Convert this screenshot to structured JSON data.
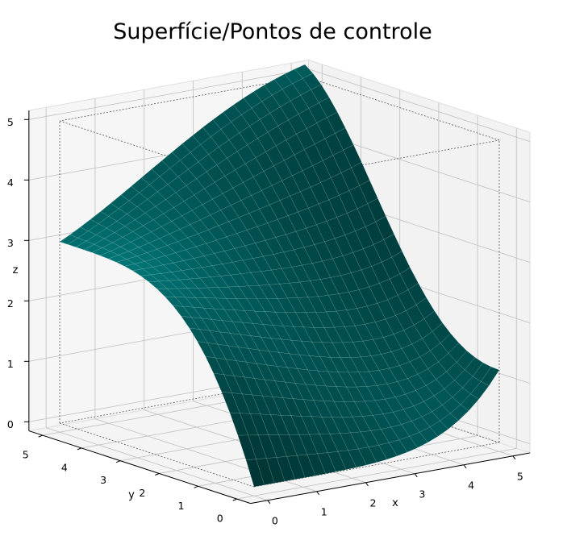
{
  "chart_data": {
    "type": "surface",
    "title": "Superfície/Pontos de controle",
    "xlabel": "x",
    "ylabel": "y",
    "zlabel": "z",
    "xlim": [
      0,
      5
    ],
    "ylim": [
      0,
      5
    ],
    "zlim": [
      0,
      5
    ],
    "x_ticks": [
      "0",
      "1",
      "2",
      "3",
      "4",
      "5"
    ],
    "y_ticks": [
      "0",
      "1",
      "2",
      "3",
      "4",
      "5"
    ],
    "z_ticks": [
      "0",
      "1",
      "2",
      "3",
      "4",
      "5"
    ],
    "grid": true,
    "surface_color": "#008b8b",
    "pane_color": "#f2f2f2",
    "control_points": [
      [
        [
          0,
          0,
          0
        ],
        [
          0,
          1,
          2
        ],
        [
          0,
          2,
          3
        ],
        [
          0,
          3,
          3
        ],
        [
          0,
          4,
          3
        ],
        [
          0,
          5,
          3
        ]
      ],
      [
        [
          1,
          0,
          0
        ],
        [
          1,
          1,
          1.6
        ],
        [
          1,
          2,
          2.6
        ],
        [
          1,
          3,
          3
        ],
        [
          1,
          4,
          3.2
        ],
        [
          1,
          5,
          3.4
        ]
      ],
      [
        [
          2,
          0,
          0
        ],
        [
          2,
          1,
          1.2
        ],
        [
          2,
          2,
          2.2
        ],
        [
          2,
          3,
          3
        ],
        [
          2,
          4,
          3.6
        ],
        [
          2,
          5,
          4
        ]
      ],
      [
        [
          3,
          0,
          0
        ],
        [
          3,
          1,
          0.8
        ],
        [
          3,
          2,
          1.8
        ],
        [
          3,
          3,
          3
        ],
        [
          3,
          4,
          4
        ],
        [
          3,
          5,
          4.6
        ]
      ],
      [
        [
          4,
          0,
          0
        ],
        [
          4,
          1,
          0.4
        ],
        [
          4,
          2,
          1.4
        ],
        [
          4,
          3,
          3
        ],
        [
          4,
          4,
          4.4
        ],
        [
          4,
          5,
          5
        ]
      ],
      [
        [
          5,
          0,
          1.2
        ],
        [
          5,
          1,
          1.2
        ],
        [
          5,
          2,
          1.6
        ],
        [
          5,
          3,
          3.2
        ],
        [
          5,
          4,
          4.8
        ],
        [
          5,
          5,
          5.2
        ]
      ]
    ]
  }
}
